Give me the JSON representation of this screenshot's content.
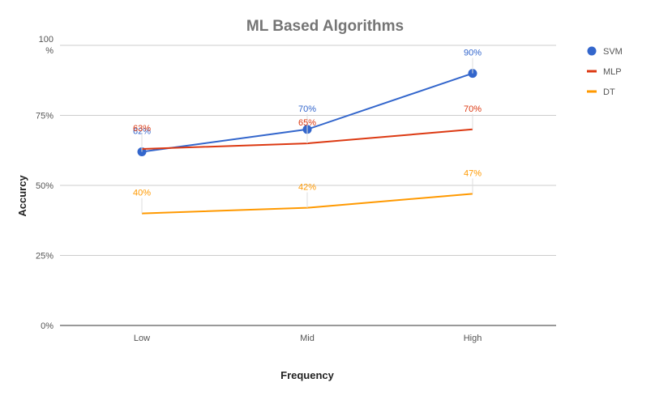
{
  "chart_data": {
    "type": "line",
    "title": "ML Based Algorithms",
    "xlabel": "Frequency",
    "ylabel": "Accurcy",
    "categories": [
      "Low",
      "Mid",
      "High"
    ],
    "ylim": [
      0,
      100
    ],
    "y_ticks": [
      {
        "value": 100,
        "label": "100\n%"
      },
      {
        "value": 75,
        "label": "75%"
      },
      {
        "value": 50,
        "label": "50%"
      },
      {
        "value": 25,
        "label": "25%"
      },
      {
        "value": 0,
        "label": "0%"
      }
    ],
    "grid": true,
    "legend_position": "right",
    "series": [
      {
        "name": "SVM",
        "color": "#3366cc",
        "marker": "circle",
        "values": [
          62,
          70,
          90
        ],
        "labels": [
          "62%",
          "70%",
          "90%"
        ]
      },
      {
        "name": "MLP",
        "color": "#dc3912",
        "marker": "line",
        "values": [
          63,
          65,
          70
        ],
        "labels": [
          "63%",
          "65%",
          "70%"
        ]
      },
      {
        "name": "DT",
        "color": "#ff9900",
        "marker": "line",
        "values": [
          40,
          42,
          47
        ],
        "labels": [
          "40%",
          "42%",
          "47%"
        ]
      }
    ]
  }
}
